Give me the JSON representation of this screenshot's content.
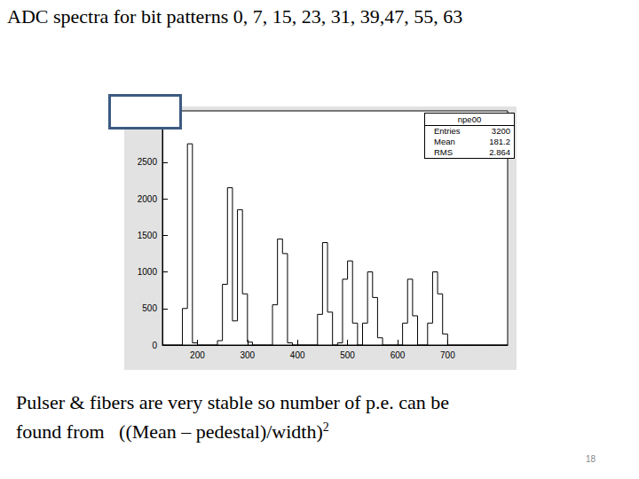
{
  "title": "ADC spectra for bit patterns 0, 7, 15, 23, 31, 39,47, 55, 63",
  "caption": {
    "lines": [
      "Pulser & fibers are very stable so number of p.e. can be",
      "found from   ((Mean – pedestal)/width)"
    ],
    "superscript": "2"
  },
  "page_number": 18,
  "chart_data": {
    "type": "histogram",
    "bins": [
      130,
      140,
      150,
      160,
      170,
      180,
      190,
      200,
      210,
      220,
      230,
      240,
      250,
      260,
      270,
      280,
      290,
      300,
      310,
      320,
      330,
      340,
      350,
      360,
      370,
      380,
      390,
      400,
      410,
      420,
      430,
      440,
      450,
      460,
      470,
      480,
      490,
      500,
      510,
      520,
      530,
      540,
      550,
      560,
      570,
      580,
      590,
      600,
      610,
      620,
      630,
      640,
      650,
      660,
      670,
      680,
      690,
      700,
      710,
      720,
      730,
      740,
      750,
      760,
      770,
      780,
      790,
      800,
      810,
      820
    ],
    "values": [
      0,
      0,
      0,
      0,
      500,
      2750,
      30,
      0,
      0,
      0,
      0,
      60,
      830,
      2150,
      330,
      1850,
      700,
      40,
      0,
      0,
      0,
      0,
      550,
      1450,
      1250,
      30,
      0,
      0,
      0,
      0,
      0,
      420,
      1400,
      450,
      0,
      30,
      900,
      1150,
      300,
      0,
      300,
      1000,
      650,
      100,
      0,
      0,
      0,
      0,
      300,
      900,
      400,
      0,
      0,
      300,
      1000,
      700,
      150,
      0,
      0,
      0,
      0,
      0,
      0,
      0,
      0,
      0,
      0,
      0,
      0
    ],
    "color": "#000000",
    "xlim": [
      130,
      820
    ],
    "xticks": [
      200,
      300,
      400,
      500,
      600,
      700
    ],
    "ylim": [
      0,
      3200
    ],
    "yticks": [
      0,
      500,
      1000,
      1500,
      2000,
      2500
    ],
    "grid": false,
    "stats": {
      "title": "npe00",
      "rows": [
        {
          "label": "Entries",
          "value": 3200
        },
        {
          "label": "Mean",
          "value": 181.2
        },
        {
          "label": "RMS",
          "value": 2.864
        }
      ]
    }
  }
}
